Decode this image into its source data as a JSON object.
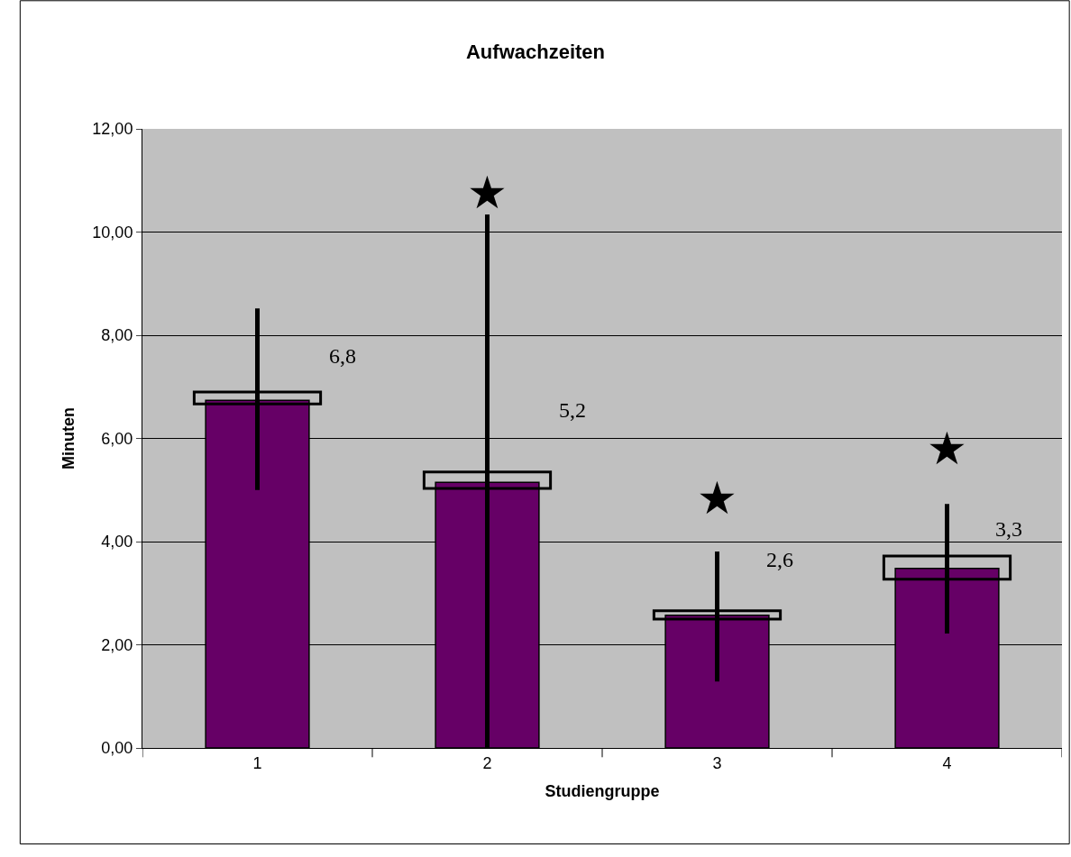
{
  "chart_data": {
    "type": "bar",
    "title": "Aufwachzeiten",
    "xlabel": "Studiengruppe",
    "ylabel": "Minuten",
    "categories": [
      "1",
      "2",
      "3",
      "4"
    ],
    "series": [
      {
        "color": "#660066",
        "values": [
          6.74,
          5.15,
          2.57,
          3.48
        ],
        "errors": [
          [
            5.0,
            8.52
          ],
          [
            0,
            10.34
          ],
          [
            1.29,
            3.81
          ],
          [
            2.22,
            4.73
          ]
        ]
      },
      {
        "color": "#000000",
        "base": [
          6.67,
          5.03,
          2.5,
          3.27
        ],
        "values": [
          0.23,
          0.32,
          0.16,
          0.45
        ]
      }
    ],
    "ylim": [
      0,
      12
    ],
    "yticks": [
      {
        "value": 0,
        "label": "0,00"
      },
      {
        "value": 2,
        "label": "2,00"
      },
      {
        "value": 4,
        "label": "4,00"
      },
      {
        "value": 6,
        "label": "6,00"
      },
      {
        "value": 8,
        "label": "8,00"
      },
      {
        "value": 10,
        "label": "10,00"
      },
      {
        "value": 12,
        "label": "12,00"
      }
    ],
    "grid": "y",
    "annotations": [
      "6,8",
      "5,2",
      "2,6",
      "3,3",
      "★",
      "★",
      "★"
    ]
  }
}
